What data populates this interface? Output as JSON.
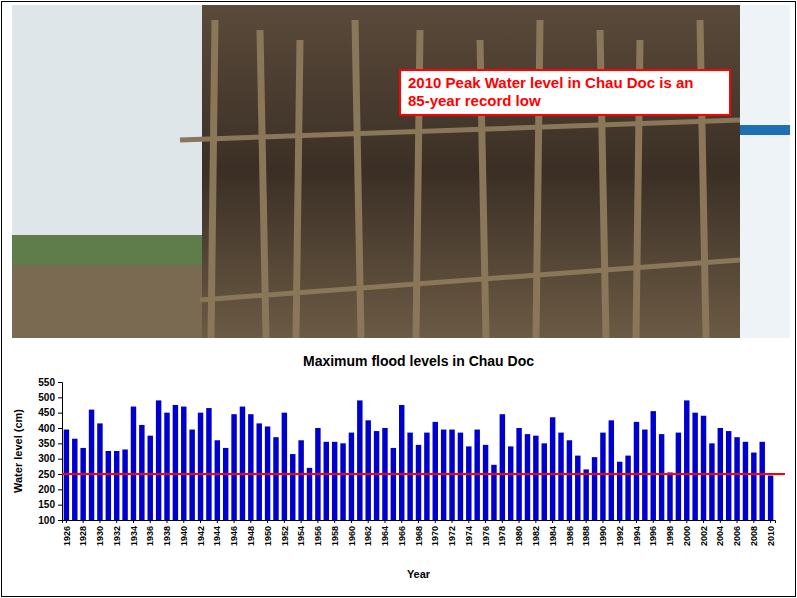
{
  "chart_data": {
    "type": "bar",
    "title": "Maximum flood levels in Chau Doc",
    "x_label": "Year",
    "y_label": "Water level (cm)",
    "categories": [
      "1926",
      null,
      "1928",
      null,
      "1930",
      null,
      "1932",
      null,
      "1934",
      null,
      "1936",
      null,
      "1938",
      null,
      "1940",
      null,
      "1942",
      null,
      "1944",
      null,
      "1946",
      null,
      "1948",
      null,
      "1950",
      null,
      "1952",
      null,
      "1954",
      null,
      "1956",
      null,
      "1958",
      null,
      "1960",
      null,
      "1962",
      null,
      "1964",
      null,
      "1966",
      null,
      "1968",
      null,
      "1970",
      null,
      "1972",
      null,
      "1974",
      null,
      "1976",
      null,
      "1978",
      null,
      "1980",
      null,
      "1982",
      null,
      "1984",
      null,
      "1986",
      null,
      "1988",
      null,
      "1990",
      null,
      "1992",
      null,
      "1994",
      null,
      "1996",
      null,
      "1998",
      null,
      "2000",
      null,
      "2002",
      null,
      "2004",
      null,
      "2006",
      null,
      "2008",
      null,
      "2010"
    ],
    "values": [
      395,
      365,
      335,
      460,
      415,
      325,
      325,
      330,
      470,
      410,
      375,
      490,
      450,
      475,
      470,
      395,
      450,
      465,
      360,
      335,
      445,
      470,
      445,
      415,
      405,
      370,
      450,
      315,
      360,
      270,
      400,
      355,
      355,
      350,
      385,
      490,
      425,
      390,
      400,
      335,
      475,
      385,
      345,
      385,
      420,
      395,
      395,
      385,
      340,
      395,
      345,
      280,
      445,
      340,
      400,
      380,
      375,
      350,
      435,
      385,
      360,
      310,
      265,
      305,
      385,
      425,
      290,
      310,
      420,
      395,
      455,
      380,
      255,
      385,
      490,
      450,
      440,
      350,
      400,
      390,
      370,
      355,
      320,
      355,
      245
    ],
    "color": "#0000cc",
    "ylim": [
      100,
      550
    ],
    "yticks": [
      100,
      150,
      200,
      250,
      300,
      350,
      400,
      450,
      500,
      550
    ],
    "grid": false,
    "reference_line": {
      "value": 250,
      "color": "#ff0000"
    },
    "annotations": [
      "2010 Peak Water level in Chau Doc is an 85-year record low"
    ]
  }
}
